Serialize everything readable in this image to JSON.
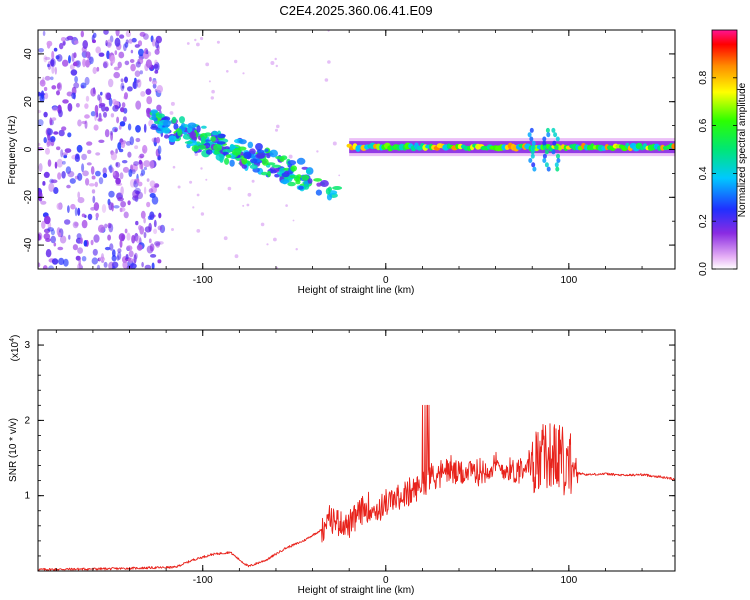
{
  "title": "C2E4.2025.360.06.41.E09",
  "colors": {
    "snr_line": "#e8231c",
    "axis": "#000000"
  },
  "chart_data": [
    {
      "type": "heatmap",
      "name": "spectrogram",
      "title": "C2E4.2025.360.06.41.E09",
      "xlabel": "Height of straight line (km)",
      "ylabel": "Frequency (Hz)",
      "xlim": [
        -190,
        158
      ],
      "ylim": [
        -50,
        50
      ],
      "xticks": [
        -100,
        0,
        100
      ],
      "xtick_labels": [
        "-100",
        "0",
        "100"
      ],
      "yticks": [
        -40,
        -20,
        0,
        20,
        40
      ],
      "ytick_labels": [
        "-40",
        "-20",
        "0",
        "20",
        "40"
      ],
      "colorbar": {
        "label": "Normalized spectral amplitude",
        "range": [
          0,
          1
        ],
        "ticks": [
          0.0,
          0.2,
          0.4,
          0.6,
          0.8
        ],
        "tick_labels": [
          "0.0",
          "0.2",
          "0.4",
          "0.6",
          "0.8"
        ]
      },
      "description_regions": [
        {
          "region": "broadband noise",
          "x_range": [
            -190,
            -122
          ],
          "freq_range": [
            -50,
            50
          ],
          "amplitude": 0.15
        },
        {
          "region": "descending tone",
          "x_range": [
            -127,
            -20
          ],
          "freq_start": 12,
          "freq_end": -15,
          "amplitude": 0.45
        },
        {
          "region": "steady tone",
          "x_range": [
            -20,
            158
          ],
          "freq": 1,
          "amplitude": 0.6
        }
      ]
    },
    {
      "type": "line",
      "name": "snr",
      "xlabel": "Height of straight line (km)",
      "ylabel": "SNR (10 * v/v)",
      "scale_label": "(x10",
      "scale_exponent": "4",
      "scale_suffix": ")",
      "xlim": [
        -190,
        158
      ],
      "ylim": [
        0,
        3.2
      ],
      "xticks": [
        -100,
        0,
        100
      ],
      "xtick_labels": [
        "-100",
        "0",
        "100"
      ],
      "yticks": [
        1,
        2,
        3
      ],
      "ytick_labels": [
        "1",
        "2",
        "3"
      ],
      "series": [
        {
          "name": "SNR",
          "x": [
            -190,
            -150,
            -115,
            -105,
            -95,
            -85,
            -80,
            -75,
            -65,
            -55,
            -45,
            -35,
            -30,
            -25,
            -20,
            -15,
            -10,
            -5,
            0,
            5,
            10,
            15,
            20,
            25,
            30,
            35,
            40,
            45,
            50,
            55,
            60,
            65,
            70,
            75,
            80,
            85,
            90,
            95,
            100,
            105,
            110,
            120,
            130,
            140,
            150,
            158
          ],
          "y": [
            0.02,
            0.03,
            0.05,
            0.15,
            0.22,
            0.25,
            0.15,
            0.06,
            0.15,
            0.3,
            0.4,
            0.55,
            0.7,
            0.65,
            0.6,
            0.75,
            0.85,
            0.8,
            0.9,
            0.95,
            1.0,
            1.05,
            1.15,
            1.25,
            1.3,
            1.35,
            1.28,
            1.32,
            1.3,
            1.35,
            1.38,
            1.35,
            1.32,
            1.4,
            1.45,
            1.5,
            1.55,
            1.5,
            1.4,
            1.3,
            1.28,
            1.29,
            1.27,
            1.28,
            1.25,
            1.22
          ]
        }
      ]
    }
  ]
}
